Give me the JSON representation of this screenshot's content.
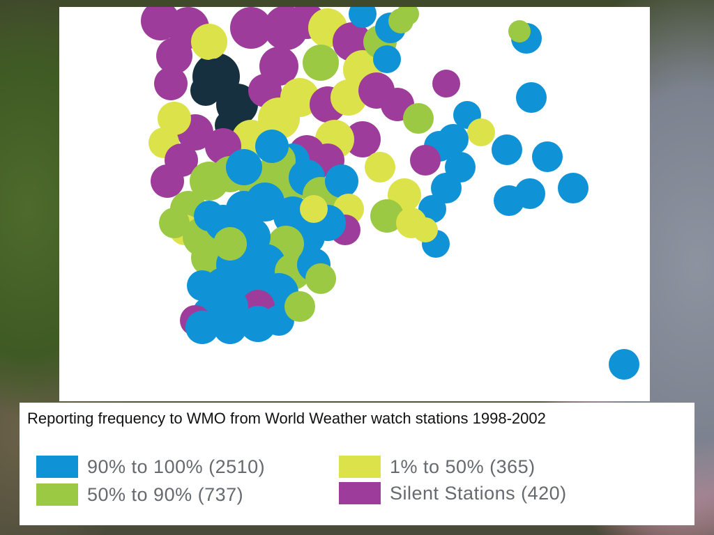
{
  "caption": "Reporting frequency to WMO from World Weather watch stations 1998-2002",
  "legend": [
    {
      "id": "high",
      "label": "90% to 100% (2510)",
      "color": "#0f92d6"
    },
    {
      "id": "mid",
      "label": "50% to 90% (737)",
      "color": "#9cc944"
    },
    {
      "id": "low",
      "label": "1% to 50% (365)",
      "color": "#dce24a"
    },
    {
      "id": "silent",
      "label": "Silent Stations (420)",
      "color": "#9e3c9b"
    }
  ],
  "colors": {
    "dark": "#16303f"
  }
}
